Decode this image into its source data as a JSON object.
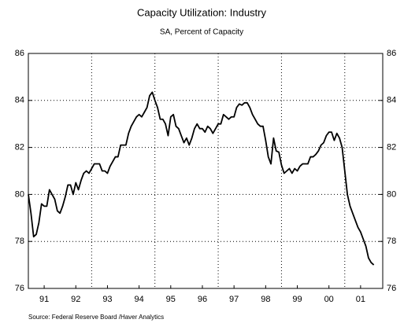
{
  "chart_data": {
    "type": "line",
    "title": "Capacity Utilization: Industry",
    "subtitle": "SA, Percent of Capacity",
    "source": "Source:  Federal Reserve Board /Haver Analytics",
    "x": [
      1991.0,
      1991.083,
      1991.167,
      1991.25,
      1991.333,
      1991.417,
      1991.5,
      1991.583,
      1991.667,
      1991.75,
      1991.833,
      1991.917,
      1992.0,
      1992.083,
      1992.167,
      1992.25,
      1992.333,
      1992.417,
      1992.5,
      1992.583,
      1992.667,
      1992.75,
      1992.833,
      1992.917,
      1993.0,
      1993.083,
      1993.167,
      1993.25,
      1993.333,
      1993.417,
      1993.5,
      1993.583,
      1993.667,
      1993.75,
      1993.833,
      1993.917,
      1994.0,
      1994.083,
      1994.167,
      1994.25,
      1994.333,
      1994.417,
      1994.5,
      1994.583,
      1994.667,
      1994.75,
      1994.833,
      1994.917,
      1995.0,
      1995.083,
      1995.167,
      1995.25,
      1995.333,
      1995.417,
      1995.5,
      1995.583,
      1995.667,
      1995.75,
      1995.833,
      1995.917,
      1996.0,
      1996.083,
      1996.167,
      1996.25,
      1996.333,
      1996.417,
      1996.5,
      1996.583,
      1996.667,
      1996.75,
      1996.833,
      1996.917,
      1997.0,
      1997.083,
      1997.167,
      1997.25,
      1997.333,
      1997.417,
      1997.5,
      1997.583,
      1997.667,
      1997.75,
      1997.833,
      1997.917,
      1998.0,
      1998.083,
      1998.167,
      1998.25,
      1998.333,
      1998.417,
      1998.5,
      1998.583,
      1998.667,
      1998.75,
      1998.833,
      1998.917,
      1999.0,
      1999.083,
      1999.167,
      1999.25,
      1999.333,
      1999.417,
      1999.5,
      1999.583,
      1999.667,
      1999.75,
      1999.833,
      1999.917,
      2000.0,
      2000.083,
      2000.167,
      2000.25,
      2000.333,
      2000.417,
      2000.5,
      2000.583,
      2000.667,
      2000.75,
      2000.833,
      2000.917,
      2001.0,
      2001.083,
      2001.167,
      2001.25,
      2001.333,
      2001.417,
      2001.5,
      2001.583,
      2001.667,
      2001.75,
      2001.833,
      2001.917
    ],
    "series": [
      {
        "color": "#000000",
        "values": [
          80.0,
          79.2,
          78.2,
          78.3,
          78.8,
          79.6,
          79.5,
          79.5,
          80.2,
          80.0,
          79.8,
          79.3,
          79.2,
          79.5,
          79.9,
          80.4,
          80.4,
          80.0,
          80.5,
          80.2,
          80.6,
          80.9,
          81.0,
          80.9,
          81.1,
          81.3,
          81.3,
          81.3,
          81.0,
          81.0,
          80.9,
          81.2,
          81.4,
          81.6,
          81.6,
          82.1,
          82.1,
          82.1,
          82.6,
          82.9,
          83.1,
          83.3,
          83.4,
          83.3,
          83.5,
          83.7,
          84.2,
          84.35,
          84.0,
          83.7,
          83.2,
          83.2,
          83.0,
          82.5,
          83.3,
          83.4,
          82.9,
          82.8,
          82.5,
          82.2,
          82.4,
          82.1,
          82.4,
          82.8,
          83.0,
          82.8,
          82.8,
          82.65,
          82.9,
          82.8,
          82.6,
          82.8,
          83.0,
          83.0,
          83.4,
          83.3,
          83.2,
          83.3,
          83.3,
          83.7,
          83.85,
          83.8,
          83.9,
          83.9,
          83.7,
          83.4,
          83.2,
          83.0,
          82.9,
          82.9,
          82.3,
          81.6,
          81.3,
          82.4,
          81.85,
          81.8,
          81.25,
          80.9,
          81.0,
          81.1,
          80.9,
          81.1,
          81.0,
          81.2,
          81.3,
          81.3,
          81.3,
          81.6,
          81.6,
          81.7,
          81.85,
          82.1,
          82.2,
          82.5,
          82.65,
          82.65,
          82.3,
          82.6,
          82.4,
          82.0,
          81.0,
          80.0,
          79.5,
          79.2,
          78.9,
          78.6,
          78.4,
          78.1,
          77.8,
          77.3,
          77.1,
          77.0
        ]
      }
    ],
    "xlim": [
      1991.0,
      2002.2
    ],
    "xticks": [
      {
        "value": 1991.5,
        "label": "91"
      },
      {
        "value": 1992.5,
        "label": "92"
      },
      {
        "value": 1993.5,
        "label": "93"
      },
      {
        "value": 1994.5,
        "label": "94"
      },
      {
        "value": 1995.5,
        "label": "95"
      },
      {
        "value": 1996.5,
        "label": "96"
      },
      {
        "value": 1997.5,
        "label": "97"
      },
      {
        "value": 1998.5,
        "label": "98"
      },
      {
        "value": 1999.5,
        "label": "99"
      },
      {
        "value": 2000.5,
        "label": "00"
      },
      {
        "value": 2001.5,
        "label": "01"
      }
    ],
    "xgrid": [
      1993,
      1995,
      1997,
      1999,
      2001
    ],
    "ylim": [
      76,
      86
    ],
    "yticks": [
      76,
      78,
      80,
      82,
      84,
      86
    ],
    "grid": true,
    "right_axis_labels": true
  }
}
